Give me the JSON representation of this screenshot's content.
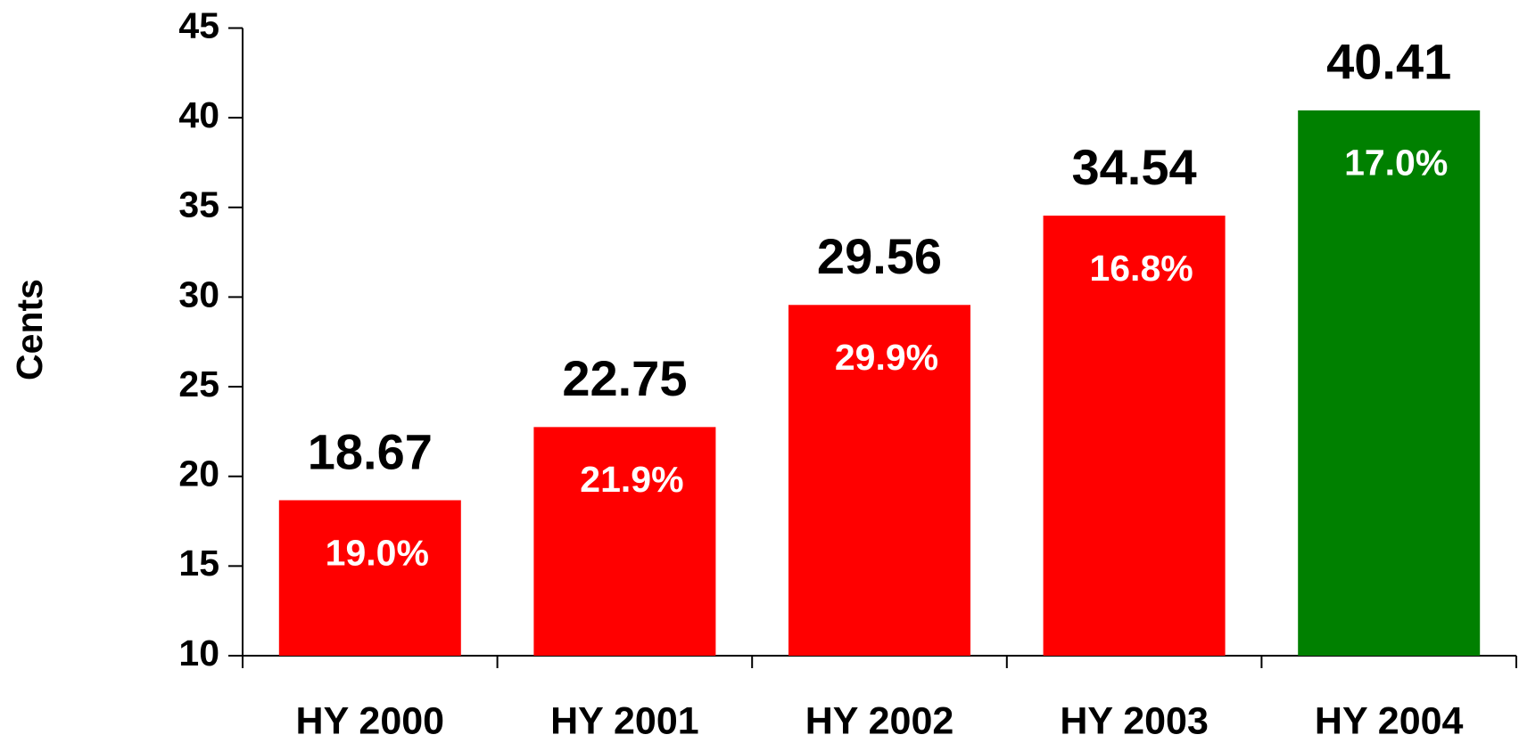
{
  "chart_data": {
    "type": "bar",
    "y_label": "Cents",
    "categories": [
      "HY 2000",
      "HY 2001",
      "HY 2002",
      "HY 2003",
      "HY 2004"
    ],
    "values": [
      18.67,
      22.75,
      29.56,
      34.54,
      40.41
    ],
    "colors": [
      "#ff0000",
      "#ff0000",
      "#ff0000",
      "#ff0000",
      "#008000"
    ],
    "growth_labels": [
      "19.0%",
      "21.9%",
      "29.9%",
      "16.8%",
      "17.0%"
    ],
    "ylim": [
      10,
      45
    ],
    "yticks": [
      10,
      15,
      20,
      25,
      30,
      35,
      40,
      45
    ],
    "grid": false
  }
}
